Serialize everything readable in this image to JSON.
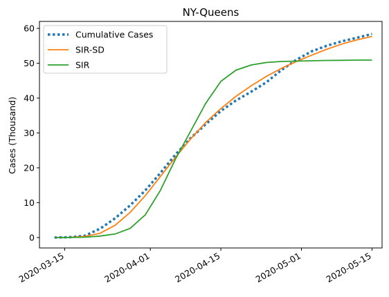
{
  "chart_data": {
    "type": "line",
    "title": "NY-Queens",
    "xlabel": "",
    "ylabel": "Cases (Thousand)",
    "xlim": [
      "2020-03-10",
      "2020-05-17"
    ],
    "ylim": [
      -3,
      62
    ],
    "x_ticks": [
      "2020-03-15",
      "2020-04-01",
      "2020-04-15",
      "2020-05-01",
      "2020-05-15"
    ],
    "y_ticks": [
      0,
      10,
      20,
      30,
      40,
      50,
      60
    ],
    "grid": false,
    "legend_position": "upper-left",
    "series": [
      {
        "name": "Cumulative Cases",
        "color": "#1f77b4",
        "style": "dotted",
        "x": [
          "2020-03-13",
          "2020-03-16",
          "2020-03-19",
          "2020-03-22",
          "2020-03-25",
          "2020-03-28",
          "2020-03-31",
          "2020-04-03",
          "2020-04-06",
          "2020-04-09",
          "2020-04-12",
          "2020-04-15",
          "2020-04-18",
          "2020-04-21",
          "2020-04-24",
          "2020-04-27",
          "2020-04-30",
          "2020-05-03",
          "2020-05-06",
          "2020-05-09",
          "2020-05-12",
          "2020-05-15"
        ],
        "y": [
          0,
          0.1,
          0.5,
          2.5,
          5.5,
          9.2,
          13.5,
          18.5,
          23.8,
          28.5,
          32.5,
          36.3,
          39.3,
          41.8,
          44.5,
          48.0,
          51.0,
          53.4,
          55.0,
          56.3,
          57.3,
          58.4
        ]
      },
      {
        "name": "SIR-SD",
        "color": "#ff7f0e",
        "style": "solid",
        "x": [
          "2020-03-13",
          "2020-03-16",
          "2020-03-19",
          "2020-03-22",
          "2020-03-25",
          "2020-03-28",
          "2020-03-31",
          "2020-04-03",
          "2020-04-06",
          "2020-04-09",
          "2020-04-12",
          "2020-04-15",
          "2020-04-18",
          "2020-04-21",
          "2020-04-24",
          "2020-04-27",
          "2020-04-30",
          "2020-05-03",
          "2020-05-06",
          "2020-05-09",
          "2020-05-12",
          "2020-05-15"
        ],
        "y": [
          0,
          0.05,
          0.3,
          1.2,
          3.5,
          7.2,
          12.0,
          17.5,
          23.0,
          28.3,
          33.0,
          37.0,
          40.5,
          43.5,
          46.2,
          48.5,
          50.5,
          52.3,
          54.0,
          55.5,
          56.7,
          57.7
        ]
      },
      {
        "name": "SIR",
        "color": "#2ca02c",
        "style": "solid",
        "x": [
          "2020-03-13",
          "2020-03-16",
          "2020-03-19",
          "2020-03-22",
          "2020-03-25",
          "2020-03-28",
          "2020-03-31",
          "2020-04-03",
          "2020-04-06",
          "2020-04-09",
          "2020-04-12",
          "2020-04-15",
          "2020-04-18",
          "2020-04-21",
          "2020-04-24",
          "2020-04-27",
          "2020-04-30",
          "2020-05-03",
          "2020-05-06",
          "2020-05-09",
          "2020-05-12",
          "2020-05-15"
        ],
        "y": [
          0,
          0.02,
          0.1,
          0.4,
          1.0,
          2.6,
          6.5,
          13.5,
          22.5,
          30.5,
          38.5,
          44.8,
          48.0,
          49.5,
          50.2,
          50.5,
          50.6,
          50.7,
          50.8,
          50.85,
          50.9,
          50.9
        ]
      }
    ]
  }
}
